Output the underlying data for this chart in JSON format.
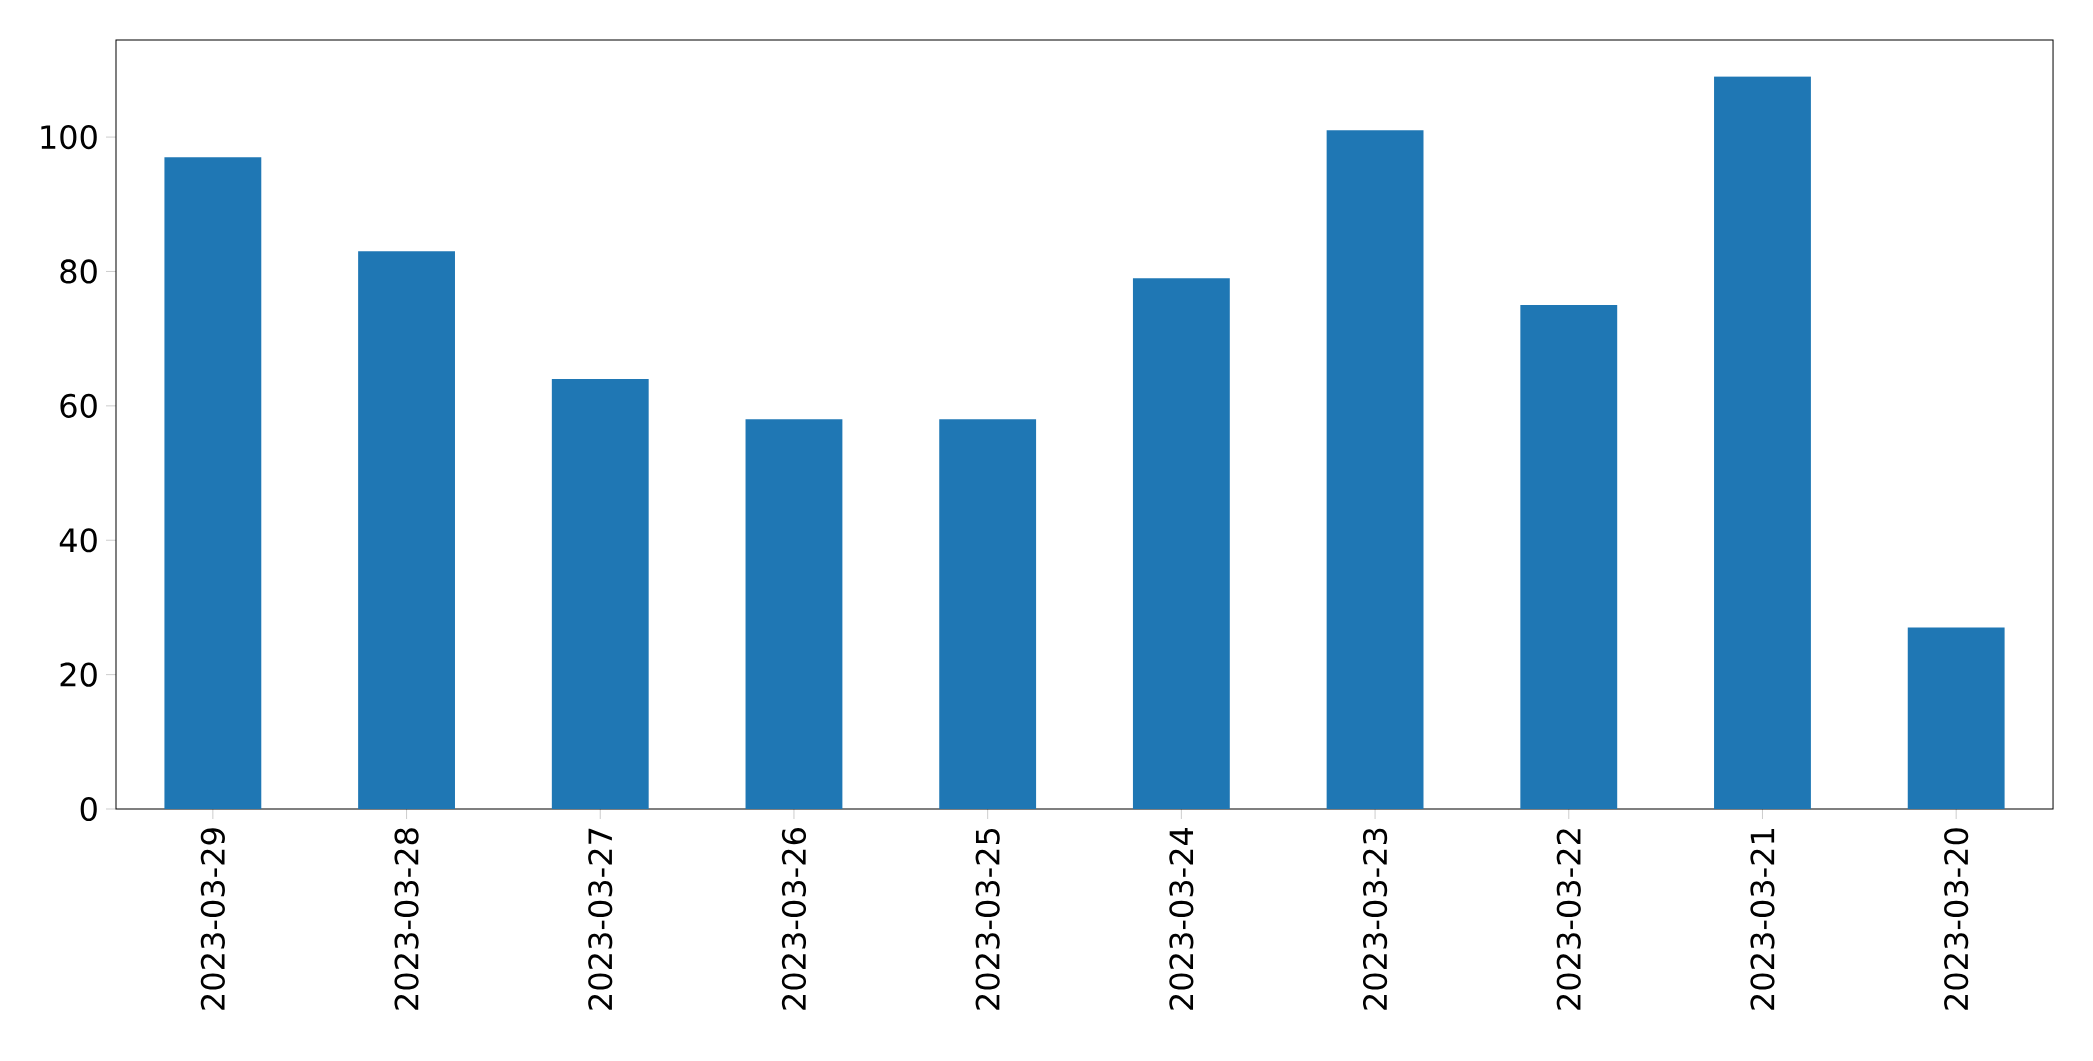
{
  "chart_data": {
    "type": "bar",
    "categories": [
      "2023-03-29",
      "2023-03-28",
      "2023-03-27",
      "2023-03-26",
      "2023-03-25",
      "2023-03-24",
      "2023-03-23",
      "2023-03-22",
      "2023-03-21",
      "2023-03-20"
    ],
    "values": [
      97,
      83,
      64,
      58,
      58,
      79,
      101,
      75,
      109,
      27
    ],
    "color": "#1f77b4",
    "ylim": [
      0,
      114.45
    ],
    "yticks": [
      0,
      20,
      40,
      60,
      80,
      100
    ]
  }
}
